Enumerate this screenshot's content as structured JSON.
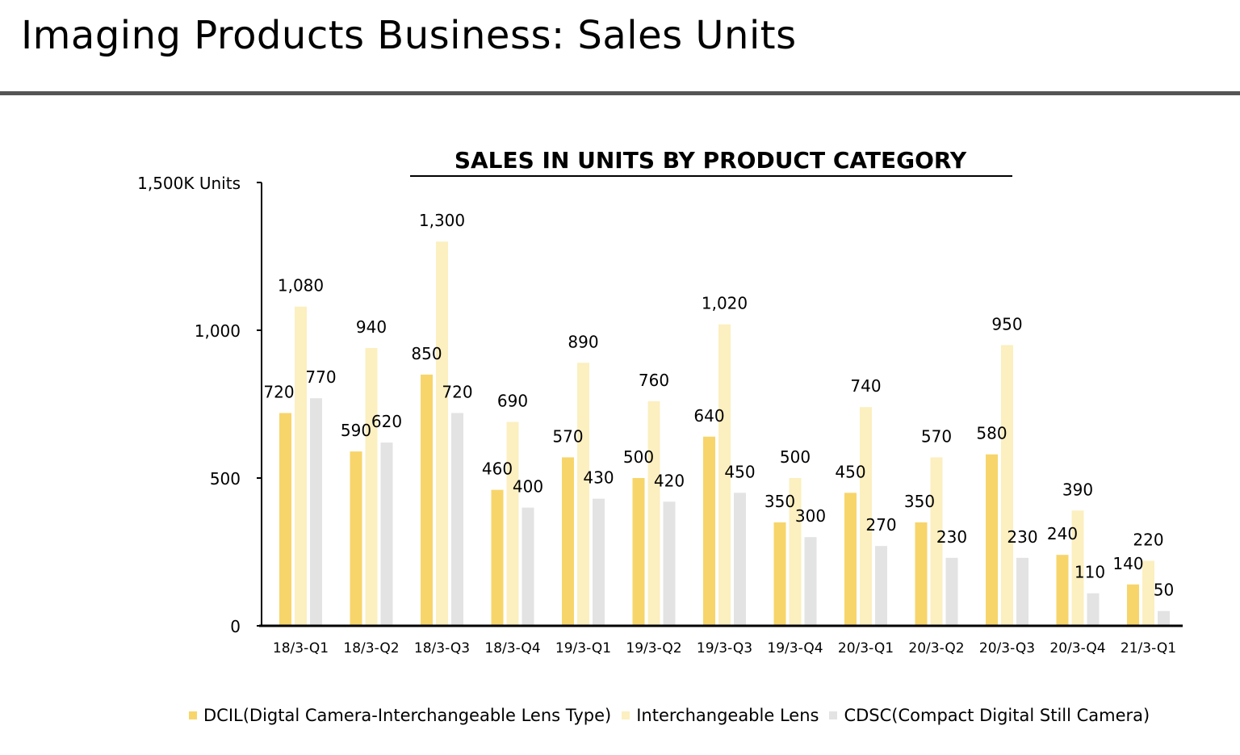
{
  "page": {
    "title": "Imaging Products Business: Sales Units"
  },
  "colors": {
    "dcil": "#F7D56A",
    "lens": "#FCEFC0",
    "cdsc": "#E3E3E3",
    "rule": "#555555",
    "axis": "#000000"
  },
  "chart_data": {
    "type": "bar",
    "title": "SALES IN UNITS BY PRODUCT CATEGORY",
    "ylabel": "1,500K Units",
    "xlabel": "",
    "ylim": [
      0,
      1500
    ],
    "yticks": [
      {
        "value": 0,
        "label": "0"
      },
      {
        "value": 500,
        "label": "500"
      },
      {
        "value": 1000,
        "label": "1,000"
      },
      {
        "value": 1500,
        "label": "1,500K Units"
      }
    ],
    "categories": [
      "18/3-Q1",
      "18/3-Q2",
      "18/3-Q3",
      "18/3-Q4",
      "19/3-Q1",
      "19/3-Q2",
      "19/3-Q3",
      "19/3-Q4",
      "20/3-Q1",
      "20/3-Q2",
      "20/3-Q3",
      "20/3-Q4",
      "21/3-Q1"
    ],
    "series": [
      {
        "key": "dcil",
        "name": "DCIL(Digtal Camera-Interchangeable Lens Type)",
        "color": "#F7D56A",
        "values": [
          720,
          590,
          850,
          460,
          570,
          500,
          640,
          350,
          450,
          350,
          580,
          240,
          140
        ],
        "labels": [
          "720",
          "590",
          "850",
          "460",
          "570",
          "500",
          "640",
          "350",
          "450",
          "350",
          "580",
          "240",
          "140"
        ]
      },
      {
        "key": "lens",
        "name": "Interchangeable Lens",
        "color": "#FCEFC0",
        "values": [
          1080,
          940,
          1300,
          690,
          890,
          760,
          1020,
          500,
          740,
          570,
          950,
          390,
          220
        ],
        "labels": [
          "1,080",
          "940",
          "1,300",
          "690",
          "890",
          "760",
          "1,020",
          "500",
          "740",
          "570",
          "950",
          "390",
          "220"
        ]
      },
      {
        "key": "cdsc",
        "name": "CDSC(Compact Digital Still Camera)",
        "color": "#E3E3E3",
        "values": [
          770,
          620,
          720,
          400,
          430,
          420,
          450,
          300,
          270,
          230,
          230,
          110,
          50
        ],
        "labels": [
          "770",
          "620",
          "720",
          "400",
          "430",
          "420",
          "450",
          "300",
          "270",
          "230",
          "230",
          "110",
          "50"
        ]
      }
    ],
    "legend_position": "bottom"
  }
}
